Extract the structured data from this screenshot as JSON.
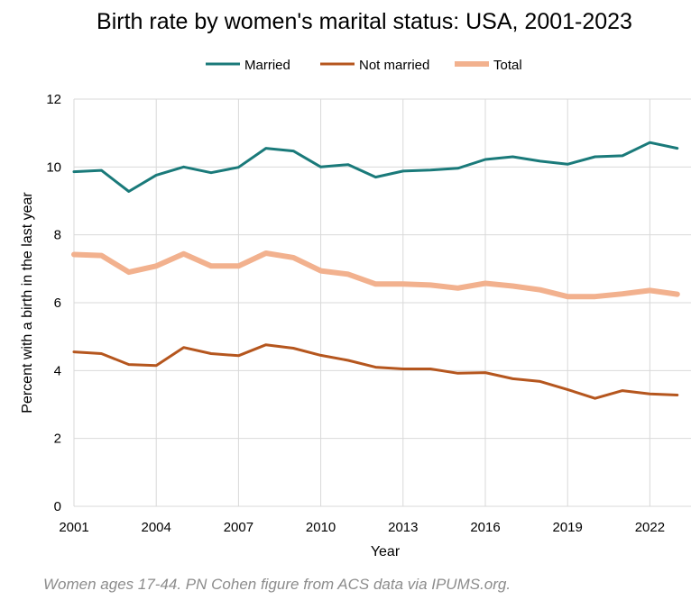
{
  "chart_data": {
    "type": "line",
    "title": "Birth rate by women's marital status: USA, 2001-2023",
    "xlabel": "Year",
    "ylabel": "Percent with a birth in the last year",
    "x": [
      2001,
      2002,
      2003,
      2004,
      2005,
      2006,
      2007,
      2008,
      2009,
      2010,
      2011,
      2012,
      2013,
      2014,
      2015,
      2016,
      2017,
      2018,
      2019,
      2020,
      2021,
      2022,
      2023
    ],
    "xlim": [
      2001,
      2023.5
    ],
    "ylim": [
      0,
      12
    ],
    "x_ticks": [
      "2001",
      "2004",
      "2007",
      "2010",
      "2013",
      "2016",
      "2019",
      "2022"
    ],
    "y_ticks": [
      "0",
      "2",
      "4",
      "6",
      "8",
      "10",
      "12"
    ],
    "grid": "vertical and horizontal",
    "legend_position": "top",
    "series": [
      {
        "name": "Married",
        "color": "#1a7a7a",
        "style": "thin",
        "values": [
          9.86,
          9.9,
          9.28,
          9.76,
          10.0,
          9.83,
          9.99,
          10.55,
          10.47,
          10.0,
          10.07,
          9.7,
          9.88,
          9.91,
          9.96,
          10.22,
          10.3,
          10.17,
          10.08,
          10.3,
          10.33,
          10.72,
          10.55
        ]
      },
      {
        "name": "Not married",
        "color": "#b5561e",
        "style": "thin",
        "values": [
          4.55,
          4.5,
          4.18,
          4.15,
          4.68,
          4.5,
          4.44,
          4.76,
          4.66,
          4.45,
          4.3,
          4.1,
          4.05,
          4.05,
          3.92,
          3.94,
          3.76,
          3.68,
          3.44,
          3.18,
          3.41,
          3.31,
          3.28
        ]
      },
      {
        "name": "Total",
        "color": "#f2b18e",
        "style": "thick",
        "values": [
          7.42,
          7.39,
          6.9,
          7.08,
          7.44,
          7.08,
          7.08,
          7.46,
          7.33,
          6.94,
          6.84,
          6.55,
          6.55,
          6.52,
          6.43,
          6.57,
          6.49,
          6.38,
          6.18,
          6.18,
          6.26,
          6.36,
          6.25
        ]
      }
    ]
  },
  "caption": "Women ages 17-44. PN Cohen figure from ACS data via IPUMS.org."
}
